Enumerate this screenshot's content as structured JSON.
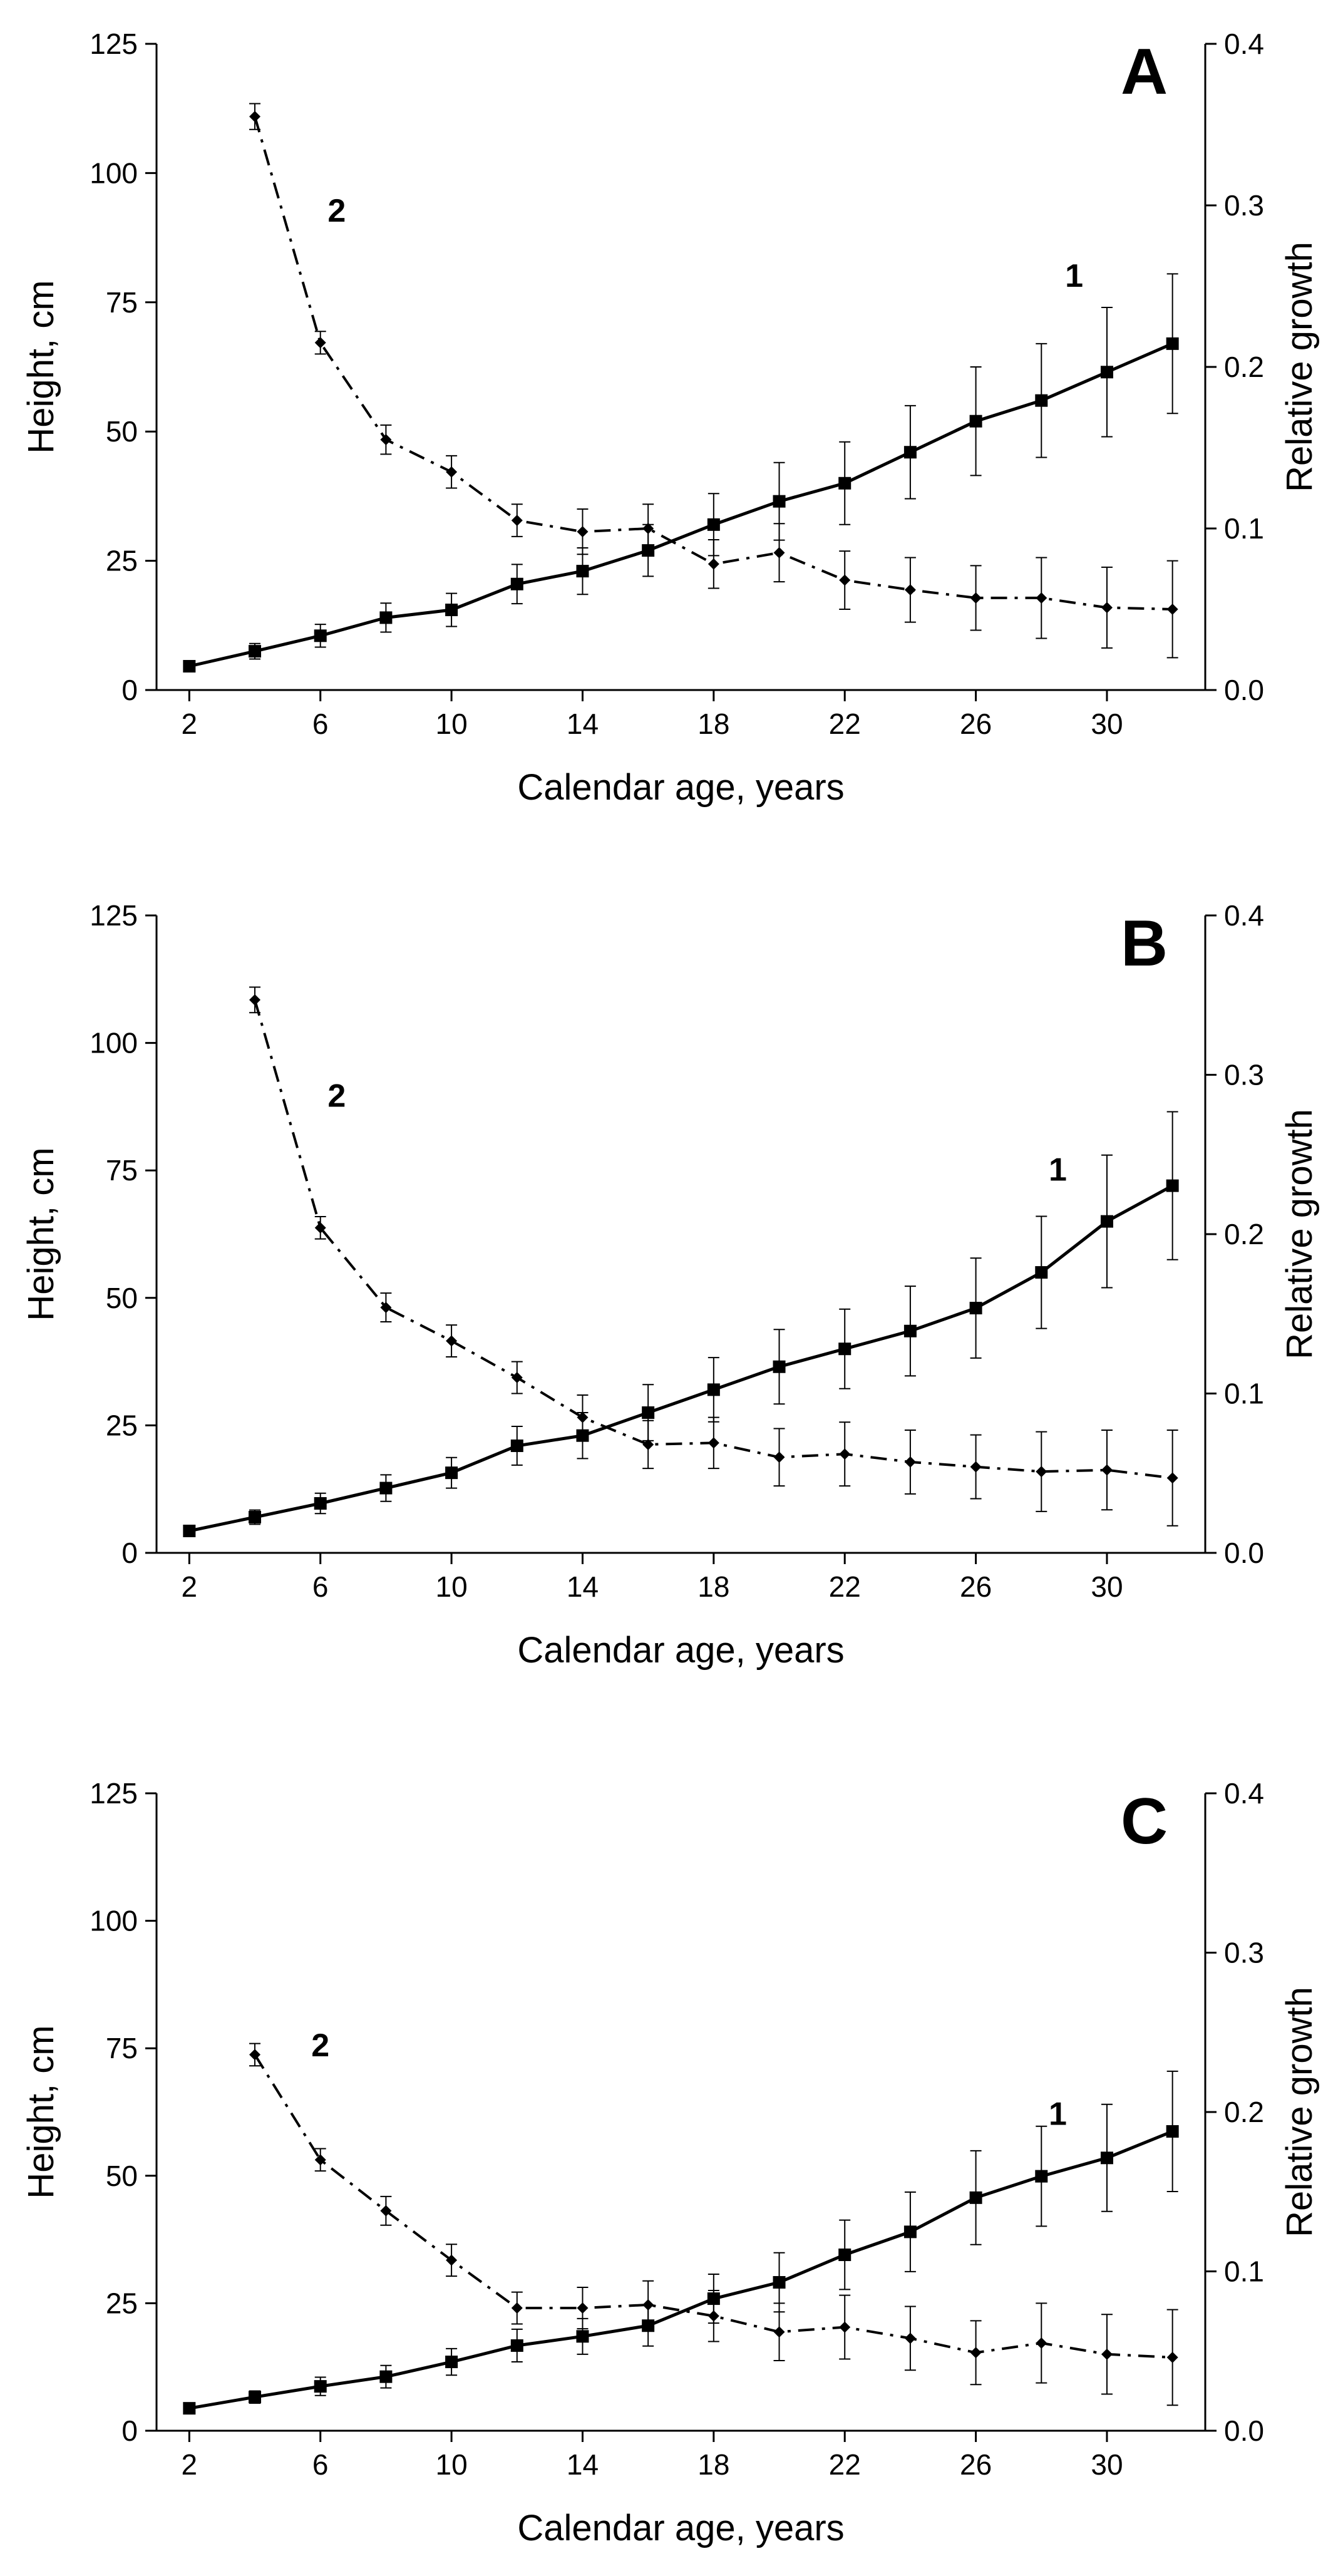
{
  "chart_data": [
    {
      "type": "line",
      "panel_label": "A",
      "xlabel": "Calendar age, years",
      "ylabel": "Height, cm",
      "y2label": "Relative growth",
      "xlim": [
        1,
        33
      ],
      "ylim": [
        0,
        125
      ],
      "y2lim": [
        0,
        0.4
      ],
      "xticks": [
        "2",
        "6",
        "10",
        "14",
        "18",
        "22",
        "26",
        "30"
      ],
      "yticks": [
        "0",
        "25",
        "50",
        "75",
        "100",
        "125"
      ],
      "y2ticks": [
        "0.0",
        "0.1",
        "0.2",
        "0.3",
        "0.4"
      ],
      "series": [
        {
          "name": "1",
          "axis": "left",
          "style": "solid",
          "marker": "square",
          "x": [
            2,
            4,
            6,
            8,
            10,
            12,
            14,
            16,
            18,
            20,
            22,
            24,
            26,
            28,
            30,
            32
          ],
          "values": [
            4.6,
            7.5,
            10.5,
            14.0,
            15.5,
            20.5,
            23.0,
            27.0,
            32.0,
            36.5,
            40.0,
            46.0,
            52.0,
            56.0,
            61.5,
            67.0
          ],
          "errors": [
            0.8,
            1.5,
            2.2,
            2.8,
            3.2,
            3.8,
            4.5,
            5.0,
            6.0,
            7.5,
            8.0,
            9.0,
            10.5,
            11.0,
            12.5,
            13.5
          ],
          "label_at": [
            29,
            78
          ]
        },
        {
          "name": "2",
          "axis": "right",
          "style": "dashdot",
          "marker": "diamond",
          "x": [
            4,
            6,
            8,
            10,
            12,
            14,
            16,
            18,
            20,
            22,
            24,
            26,
            28,
            30,
            32
          ],
          "values": [
            0.355,
            0.215,
            0.155,
            0.135,
            0.105,
            0.098,
            0.1,
            0.078,
            0.085,
            0.068,
            0.062,
            0.057,
            0.057,
            0.051,
            0.05
          ],
          "errors": [
            0.008,
            0.007,
            0.009,
            0.01,
            0.01,
            0.014,
            0.015,
            0.015,
            0.018,
            0.018,
            0.02,
            0.02,
            0.025,
            0.025,
            0.03
          ],
          "label_at": [
            6.5,
            0.29
          ]
        }
      ]
    },
    {
      "type": "line",
      "panel_label": "B",
      "xlabel": "Calendar age, years",
      "ylabel": "Height, cm",
      "y2label": "Relative growth",
      "xlim": [
        1,
        33
      ],
      "ylim": [
        0,
        125
      ],
      "y2lim": [
        0,
        0.4
      ],
      "xticks": [
        "2",
        "6",
        "10",
        "14",
        "18",
        "22",
        "26",
        "30"
      ],
      "yticks": [
        "0",
        "25",
        "50",
        "75",
        "100",
        "125"
      ],
      "y2ticks": [
        "0.0",
        "0.1",
        "0.2",
        "0.3",
        "0.4"
      ],
      "series": [
        {
          "name": "1",
          "axis": "left",
          "style": "solid",
          "marker": "square",
          "x": [
            2,
            4,
            6,
            8,
            10,
            12,
            14,
            16,
            18,
            20,
            22,
            24,
            26,
            28,
            30,
            32
          ],
          "values": [
            4.3,
            7.0,
            9.7,
            12.7,
            15.7,
            21.0,
            23.0,
            27.5,
            32.0,
            36.5,
            40.0,
            43.5,
            48.0,
            55.0,
            65.0,
            72.0
          ],
          "errors": [
            0.7,
            1.4,
            2.0,
            2.6,
            3.0,
            3.8,
            4.5,
            5.5,
            6.3,
            7.3,
            7.8,
            8.8,
            9.8,
            11.0,
            13.0,
            14.5
          ],
          "label_at": [
            28.5,
            73
          ]
        },
        {
          "name": "2",
          "axis": "right",
          "style": "dashdot",
          "marker": "diamond",
          "x": [
            4,
            6,
            8,
            10,
            12,
            14,
            16,
            18,
            20,
            22,
            24,
            26,
            28,
            30,
            32
          ],
          "values": [
            0.347,
            0.204,
            0.154,
            0.133,
            0.11,
            0.085,
            0.068,
            0.069,
            0.06,
            0.062,
            0.057,
            0.054,
            0.051,
            0.052,
            0.047
          ],
          "errors": [
            0.008,
            0.007,
            0.009,
            0.01,
            0.01,
            0.014,
            0.015,
            0.016,
            0.018,
            0.02,
            0.02,
            0.02,
            0.025,
            0.025,
            0.03
          ],
          "label_at": [
            6.5,
            0.28
          ]
        }
      ]
    },
    {
      "type": "line",
      "panel_label": "C",
      "xlabel": "Calendar age, years",
      "ylabel": "Height, cm",
      "y2label": "Relative growth",
      "xlim": [
        1,
        33
      ],
      "ylim": [
        0,
        125
      ],
      "y2lim": [
        0,
        0.4
      ],
      "xticks": [
        "2",
        "6",
        "10",
        "14",
        "18",
        "22",
        "26",
        "30"
      ],
      "yticks": [
        "0",
        "25",
        "50",
        "75",
        "100",
        "125"
      ],
      "y2ticks": [
        "0.0",
        "0.1",
        "0.2",
        "0.3",
        "0.4"
      ],
      "series": [
        {
          "name": "1",
          "axis": "left",
          "style": "solid",
          "marker": "square",
          "x": [
            2,
            4,
            6,
            8,
            10,
            12,
            14,
            16,
            18,
            20,
            22,
            24,
            26,
            28,
            30,
            32
          ],
          "values": [
            4.4,
            6.6,
            8.7,
            10.6,
            13.5,
            16.7,
            18.5,
            20.6,
            25.9,
            29.1,
            34.5,
            39.0,
            45.7,
            49.9,
            53.5,
            58.7
          ],
          "errors": [
            0.7,
            1.2,
            1.8,
            2.2,
            2.6,
            3.2,
            3.5,
            4.0,
            4.8,
            5.8,
            6.8,
            7.8,
            9.2,
            9.8,
            10.5,
            11.8
          ],
          "label_at": [
            28.5,
            60
          ]
        },
        {
          "name": "2",
          "axis": "right",
          "style": "dashdot",
          "marker": "diamond",
          "x": [
            4,
            6,
            8,
            10,
            12,
            14,
            16,
            18,
            20,
            22,
            24,
            26,
            28,
            30,
            32
          ],
          "values": [
            0.236,
            0.17,
            0.138,
            0.107,
            0.077,
            0.077,
            0.079,
            0.072,
            0.062,
            0.065,
            0.058,
            0.049,
            0.055,
            0.048,
            0.046
          ],
          "errors": [
            0.007,
            0.007,
            0.009,
            0.01,
            0.01,
            0.013,
            0.015,
            0.016,
            0.018,
            0.02,
            0.02,
            0.02,
            0.025,
            0.025,
            0.03
          ],
          "label_at": [
            6,
            0.235
          ]
        }
      ]
    }
  ]
}
